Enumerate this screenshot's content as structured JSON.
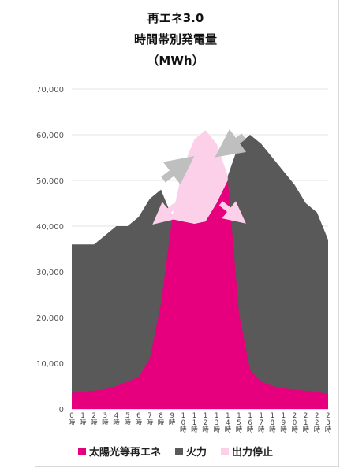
{
  "chart_data": {
    "type": "area",
    "title_lines": [
      "再エネ3.0",
      "時間帯別発電量",
      "（MWh）"
    ],
    "categories": [
      "0時",
      "1時",
      "2時",
      "3時",
      "4時",
      "5時",
      "6時",
      "7時",
      "8時",
      "9時",
      "10時",
      "11時",
      "12時",
      "13時",
      "14時",
      "15時",
      "16時",
      "17時",
      "18時",
      "19時",
      "20時",
      "21時",
      "22時",
      "23時"
    ],
    "ylim": [
      0,
      70000
    ],
    "yticks": [
      "0",
      "10,000",
      "20,000",
      "30,000",
      "40,000",
      "50,000",
      "60,000",
      "70,000"
    ],
    "series": [
      {
        "name": "太陽光等再エネ",
        "color": "#e6007e",
        "values": [
          3500,
          3800,
          4000,
          4300,
          5000,
          6000,
          7000,
          11000,
          23000,
          41500,
          41000,
          40500,
          41000,
          45000,
          50000,
          21000,
          8500,
          6000,
          5000,
          4500,
          4200,
          4000,
          3700,
          3300
        ]
      },
      {
        "name": "火力",
        "color": "#595959",
        "values": [
          36000,
          36000,
          36000,
          38000,
          40000,
          40000,
          42000,
          46000,
          48000,
          42000,
          41000,
          41000,
          42000,
          45000,
          51000,
          58000,
          60000,
          58000,
          55000,
          52000,
          49000,
          45000,
          43000,
          37000
        ]
      },
      {
        "name": "出力停止",
        "color": "#fbd0e8",
        "values": [
          null,
          null,
          null,
          null,
          null,
          null,
          null,
          null,
          null,
          42000,
          53000,
          59000,
          61000,
          58000,
          51000,
          null,
          null,
          null,
          null,
          null,
          null,
          null,
          null,
          null
        ]
      }
    ],
    "grid": true,
    "legend": "bottom",
    "annotations": [
      "arrows indicating thermal output reduced and curtailed renewable output"
    ]
  }
}
